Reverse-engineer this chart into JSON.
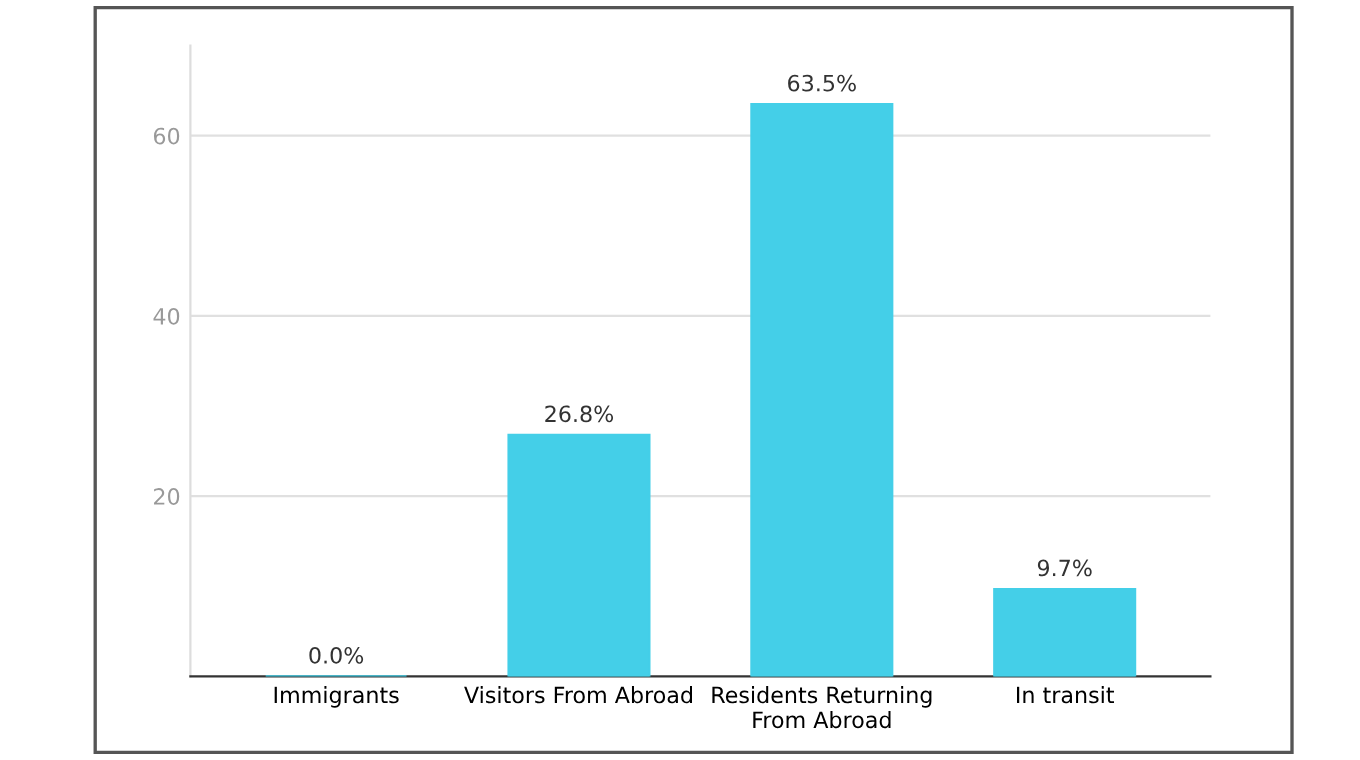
{
  "chart_data": {
    "type": "bar",
    "categories": [
      "Immigrants",
      "Visitors From Abroad",
      "Residents Returning\nFrom Abroad",
      "In transit"
    ],
    "values": [
      0.0,
      26.8,
      63.5,
      9.7
    ],
    "value_labels": [
      "0.0%",
      "26.8%",
      "63.5%",
      "9.7%"
    ],
    "color": "#44cfe8",
    "ylim": [
      0,
      70
    ],
    "yticks": [
      20,
      40,
      60
    ],
    "grid": "y"
  }
}
